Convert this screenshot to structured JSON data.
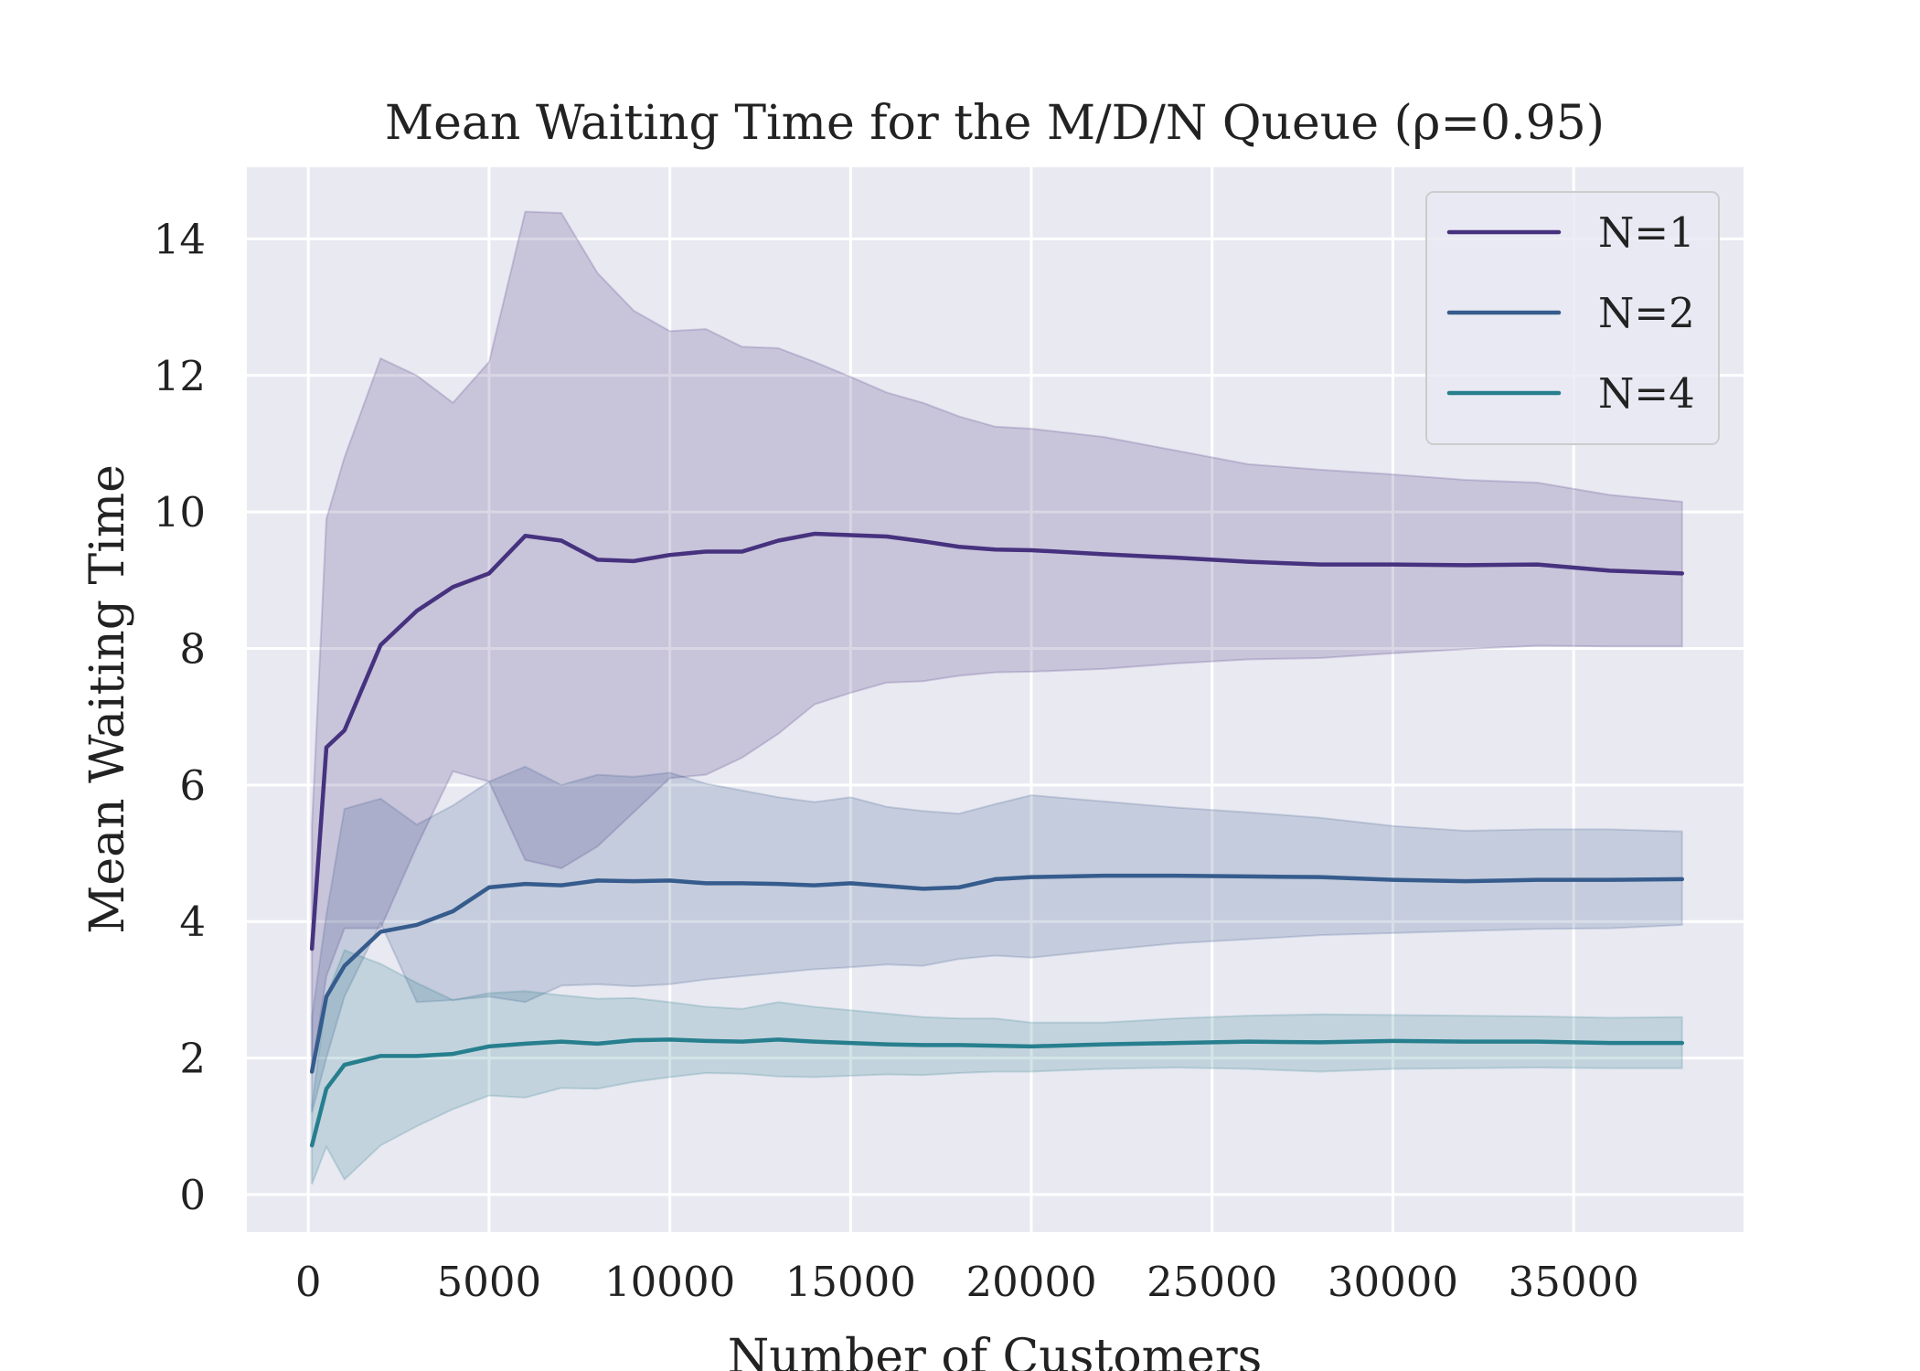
{
  "chart_data": {
    "type": "line",
    "title": "Mean Waiting Time for the M/D/N Queue (ρ=0.95)",
    "xlabel": "Number of Customers",
    "ylabel": "Mean Waiting Time",
    "xlim": [
      -1700,
      39700
    ],
    "ylim": [
      -0.55,
      15.05
    ],
    "xticks": [
      0,
      5000,
      10000,
      15000,
      20000,
      25000,
      30000,
      35000
    ],
    "yticks": [
      0,
      2,
      4,
      6,
      8,
      10,
      12,
      14
    ],
    "grid": true,
    "background": "#e9e9f2",
    "legend_position": "top-right",
    "series": [
      {
        "name": "N=1",
        "color": "#46327e",
        "band_opacity": 0.2,
        "x": [
          100,
          500,
          1000,
          2000,
          3000,
          4000,
          5000,
          6000,
          7000,
          8000,
          9000,
          10000,
          11000,
          12000,
          13000,
          14000,
          15000,
          16000,
          17000,
          18000,
          19000,
          20000,
          22000,
          24000,
          26000,
          28000,
          30000,
          32000,
          34000,
          36000,
          38000
        ],
        "mean": [
          3.6,
          6.55,
          6.8,
          8.05,
          8.55,
          8.9,
          9.1,
          9.65,
          9.58,
          9.3,
          9.28,
          9.37,
          9.42,
          9.42,
          9.58,
          9.68,
          9.66,
          9.64,
          9.57,
          9.49,
          9.45,
          9.44,
          9.38,
          9.33,
          9.27,
          9.23,
          9.23,
          9.22,
          9.23,
          9.14,
          9.1
        ],
        "upper": [
          5.4,
          9.9,
          10.8,
          12.25,
          12.0,
          11.6,
          12.2,
          14.4,
          14.38,
          13.5,
          12.95,
          12.65,
          12.68,
          12.42,
          12.4,
          12.2,
          11.98,
          11.75,
          11.6,
          11.4,
          11.25,
          11.22,
          11.1,
          10.9,
          10.7,
          10.62,
          10.55,
          10.47,
          10.43,
          10.25,
          10.15
        ],
        "lower": [
          1.8,
          3.2,
          3.9,
          3.9,
          5.1,
          6.2,
          6.05,
          4.9,
          4.78,
          5.1,
          5.6,
          6.1,
          6.15,
          6.4,
          6.75,
          7.18,
          7.35,
          7.5,
          7.52,
          7.6,
          7.65,
          7.66,
          7.7,
          7.78,
          7.84,
          7.86,
          7.93,
          7.99,
          8.04,
          8.03,
          8.03
        ]
      },
      {
        "name": "N=2",
        "color": "#365c8d",
        "band_opacity": 0.2,
        "x": [
          100,
          500,
          1000,
          2000,
          3000,
          4000,
          5000,
          6000,
          7000,
          8000,
          9000,
          10000,
          11000,
          12000,
          13000,
          14000,
          15000,
          16000,
          17000,
          18000,
          19000,
          20000,
          22000,
          24000,
          26000,
          28000,
          30000,
          32000,
          34000,
          36000,
          38000
        ],
        "mean": [
          1.8,
          2.9,
          3.35,
          3.85,
          3.95,
          4.15,
          4.5,
          4.55,
          4.53,
          4.6,
          4.59,
          4.6,
          4.56,
          4.56,
          4.55,
          4.53,
          4.56,
          4.52,
          4.48,
          4.5,
          4.62,
          4.65,
          4.67,
          4.67,
          4.66,
          4.65,
          4.61,
          4.59,
          4.61,
          4.61,
          4.62
        ],
        "upper": [
          2.6,
          4.1,
          5.65,
          5.8,
          5.42,
          5.7,
          6.05,
          6.27,
          6.0,
          6.15,
          6.12,
          6.18,
          6.02,
          5.92,
          5.82,
          5.75,
          5.82,
          5.68,
          5.62,
          5.58,
          5.72,
          5.85,
          5.76,
          5.67,
          5.6,
          5.52,
          5.4,
          5.33,
          5.35,
          5.35,
          5.32
        ],
        "lower": [
          1.2,
          2.0,
          2.9,
          3.98,
          2.82,
          2.85,
          2.9,
          2.82,
          3.06,
          3.08,
          3.05,
          3.08,
          3.15,
          3.2,
          3.25,
          3.3,
          3.33,
          3.37,
          3.35,
          3.45,
          3.5,
          3.47,
          3.58,
          3.68,
          3.74,
          3.8,
          3.83,
          3.86,
          3.89,
          3.9,
          3.95
        ]
      },
      {
        "name": "N=4",
        "color": "#277f8e",
        "band_opacity": 0.2,
        "x": [
          100,
          500,
          1000,
          2000,
          3000,
          4000,
          5000,
          6000,
          7000,
          8000,
          9000,
          10000,
          11000,
          12000,
          13000,
          14000,
          15000,
          16000,
          17000,
          18000,
          19000,
          20000,
          22000,
          24000,
          26000,
          28000,
          30000,
          32000,
          34000,
          36000,
          38000
        ],
        "mean": [
          0.72,
          1.55,
          1.9,
          2.03,
          2.03,
          2.06,
          2.17,
          2.21,
          2.24,
          2.21,
          2.26,
          2.27,
          2.25,
          2.24,
          2.27,
          2.24,
          2.22,
          2.2,
          2.19,
          2.19,
          2.18,
          2.17,
          2.2,
          2.22,
          2.24,
          2.23,
          2.25,
          2.24,
          2.24,
          2.22,
          2.22
        ],
        "upper": [
          1.3,
          2.9,
          3.58,
          3.38,
          3.1,
          2.85,
          2.95,
          2.98,
          2.92,
          2.87,
          2.88,
          2.82,
          2.75,
          2.72,
          2.82,
          2.75,
          2.7,
          2.65,
          2.6,
          2.58,
          2.58,
          2.52,
          2.52,
          2.58,
          2.62,
          2.64,
          2.63,
          2.62,
          2.61,
          2.59,
          2.6
        ],
        "lower": [
          0.15,
          0.7,
          0.22,
          0.72,
          1.0,
          1.25,
          1.45,
          1.42,
          1.56,
          1.55,
          1.65,
          1.72,
          1.78,
          1.77,
          1.73,
          1.72,
          1.74,
          1.76,
          1.75,
          1.78,
          1.8,
          1.8,
          1.84,
          1.86,
          1.84,
          1.8,
          1.84,
          1.85,
          1.86,
          1.85,
          1.85
        ]
      }
    ]
  }
}
